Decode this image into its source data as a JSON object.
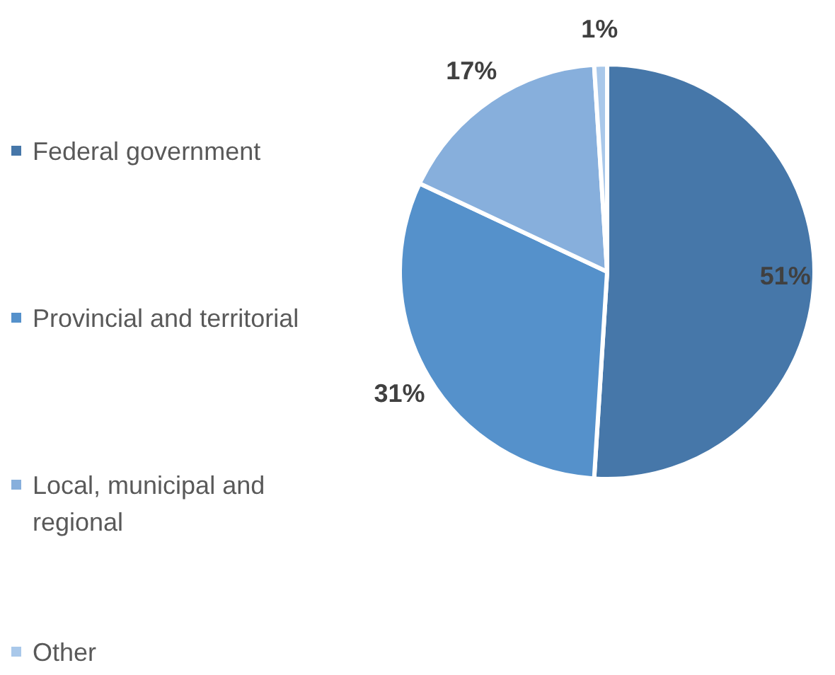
{
  "chart_data": {
    "type": "pie",
    "categories": [
      "Federal government",
      "Provincial and territorial",
      "Local, municipal and regional",
      "Other"
    ],
    "values": [
      51,
      31,
      17,
      1
    ],
    "colors": [
      "#4677a9",
      "#5591cb",
      "#87afdc",
      "#a9c8ea"
    ],
    "value_labels": [
      "51%",
      "31%",
      "17%",
      "1%"
    ],
    "legend": "left"
  }
}
